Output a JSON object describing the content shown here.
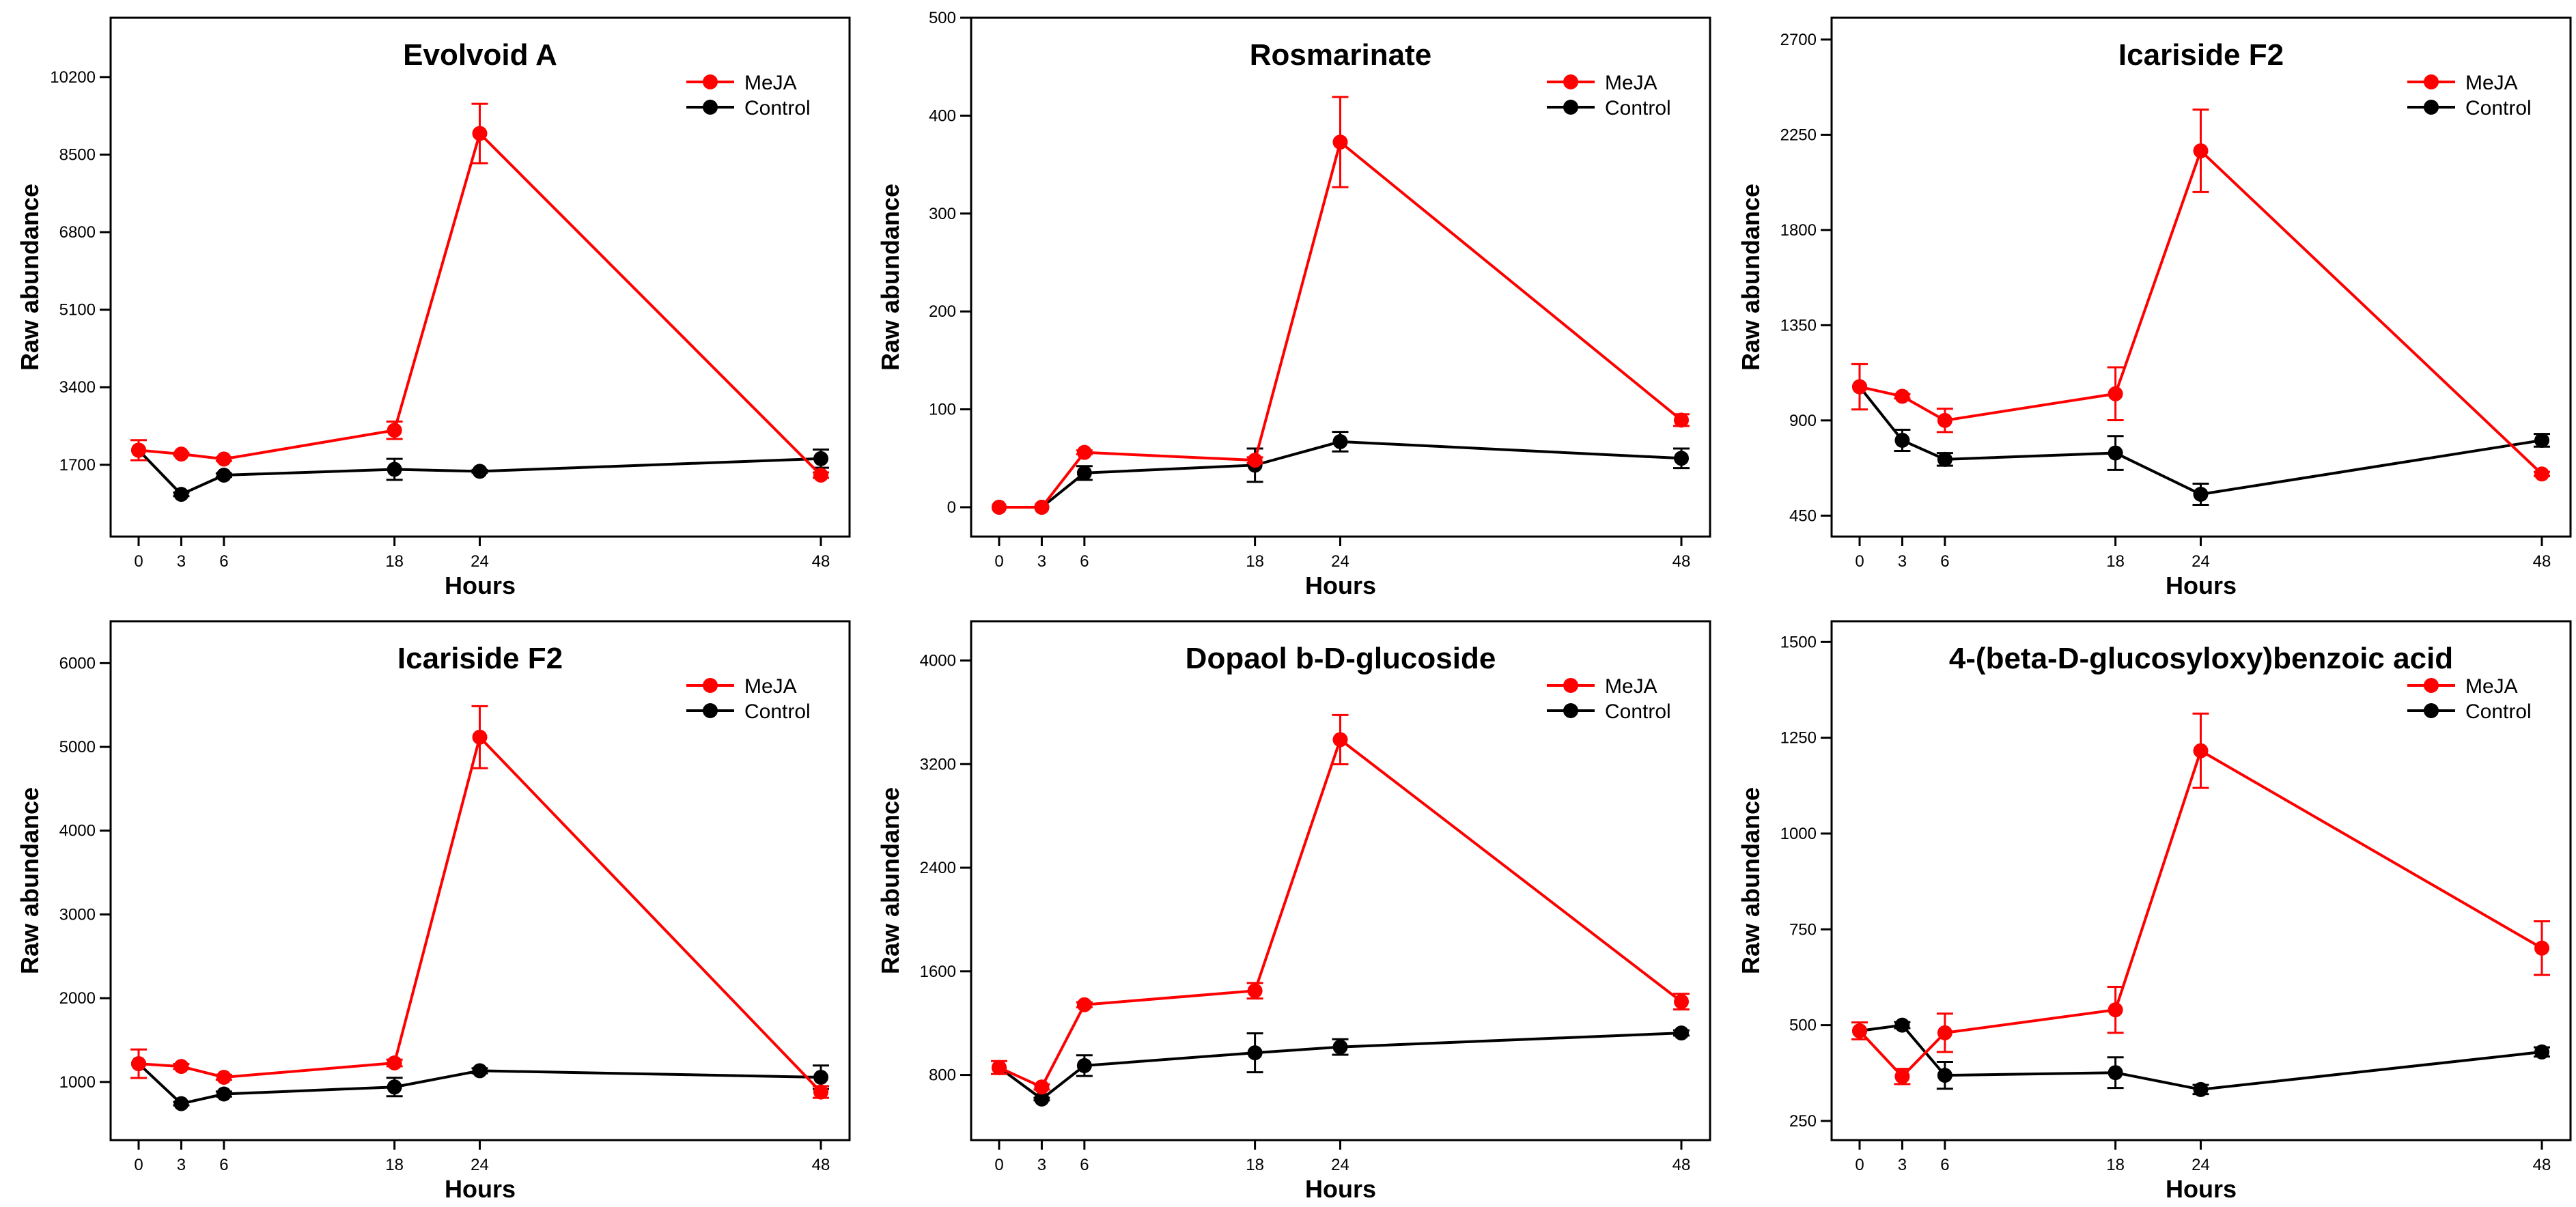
{
  "colors": {
    "MeJA": "#ff0000",
    "Control": "#000000"
  },
  "chart_data": [
    {
      "type": "line",
      "title": "Evolvoid A",
      "xlabel": "Hours",
      "ylabel": "Raw abundance",
      "x": [
        0,
        3,
        6,
        18,
        24,
        48
      ],
      "x_ticks": [
        "0",
        "3",
        "6",
        "18",
        "24",
        "48"
      ],
      "y_ticks": [
        1700,
        3400,
        5100,
        6800,
        8500,
        10200
      ],
      "ylim": [
        126,
        11500
      ],
      "legend": {
        "position": "top-right",
        "entries": [
          "MeJA",
          "Control"
        ]
      },
      "series": [
        {
          "name": "MeJA",
          "values": [
            2020,
            1935,
            1826,
            2457,
            8963,
            1473
          ],
          "errors": [
            220,
            30,
            40,
            190,
            650,
            60
          ]
        },
        {
          "name": "Control",
          "values": [
            2020,
            1052,
            1473,
            1600,
            1557,
            1835
          ],
          "errors": [
            0,
            40,
            40,
            230,
            30,
            200
          ]
        }
      ]
    },
    {
      "type": "line",
      "title": "Rosmarinate",
      "xlabel": "Hours",
      "ylabel": "Raw abundance",
      "x": [
        0,
        3,
        6,
        18,
        24,
        48
      ],
      "x_ticks": [
        "0",
        "3",
        "6",
        "18",
        "24",
        "48"
      ],
      "y_ticks": [
        0,
        100,
        200,
        300,
        400,
        500
      ],
      "ylim": [
        -30,
        500
      ],
      "legend": {
        "position": "top-right",
        "entries": [
          "MeJA",
          "Control"
        ]
      },
      "series": [
        {
          "name": "MeJA",
          "values": [
            0,
            0,
            56,
            48,
            373,
            89
          ],
          "errors": [
            0,
            0,
            2,
            3,
            46,
            6
          ]
        },
        {
          "name": "Control",
          "values": [
            0,
            0,
            35,
            43,
            67,
            50
          ],
          "errors": [
            0,
            0,
            7,
            17,
            10,
            10
          ]
        }
      ]
    },
    {
      "type": "line",
      "title": "Icariside F2",
      "xlabel": "Hours",
      "ylabel": "Raw abundance",
      "x": [
        0,
        3,
        6,
        18,
        24,
        48
      ],
      "x_ticks": [
        "0",
        "3",
        "6",
        "18",
        "24",
        "48"
      ],
      "y_ticks": [
        450,
        900,
        1350,
        1800,
        2250,
        2700
      ],
      "ylim": [
        351,
        2803
      ],
      "legend": {
        "position": "top-right",
        "entries": [
          "MeJA",
          "Control"
        ]
      },
      "series": [
        {
          "name": "MeJA",
          "values": [
            1059,
            1014,
            900,
            1026,
            2174,
            647
          ],
          "errors": [
            107,
            10,
            55,
            125,
            195,
            10
          ]
        },
        {
          "name": "Control",
          "values": [
            1059,
            806,
            716,
            746,
            551,
            806
          ],
          "errors": [
            0,
            50,
            30,
            80,
            50,
            30
          ]
        }
      ]
    },
    {
      "type": "line",
      "title": "Icariside F2",
      "xlabel": "Hours",
      "ylabel": "Raw abundance",
      "x": [
        0,
        3,
        6,
        18,
        24,
        48
      ],
      "x_ticks": [
        "0",
        "3",
        "6",
        "18",
        "24",
        "48"
      ],
      "y_ticks": [
        1000,
        2000,
        3000,
        4000,
        5000,
        6000
      ],
      "ylim": [
        306,
        6500
      ],
      "legend": {
        "position": "top-right",
        "entries": [
          "MeJA",
          "Control"
        ]
      },
      "series": [
        {
          "name": "MeJA",
          "values": [
            1218,
            1185,
            1056,
            1227,
            5116,
            880
          ],
          "errors": [
            170,
            30,
            30,
            40,
            370,
            70
          ]
        },
        {
          "name": "Control",
          "values": [
            1218,
            741,
            856,
            940,
            1134,
            1056
          ],
          "errors": [
            0,
            20,
            30,
            110,
            30,
            140
          ]
        }
      ]
    },
    {
      "type": "line",
      "title": "Dopaol b-D-glucoside",
      "xlabel": "Hours",
      "ylabel": "Raw abundance",
      "x": [
        0,
        3,
        6,
        18,
        24,
        48
      ],
      "x_ticks": [
        "0",
        "3",
        "6",
        "18",
        "24",
        "48"
      ],
      "y_ticks": [
        800,
        1600,
        2400,
        3200,
        4000
      ],
      "ylim": [
        297,
        4303
      ],
      "legend": {
        "position": "top-right",
        "entries": [
          "MeJA",
          "Control"
        ]
      },
      "series": [
        {
          "name": "MeJA",
          "values": [
            857,
            707,
            1342,
            1450,
            3389,
            1366
          ],
          "errors": [
            50,
            20,
            20,
            60,
            190,
            60
          ]
        },
        {
          "name": "Control",
          "values": [
            857,
            614,
            872,
            971,
            1016,
            1124
          ],
          "errors": [
            0,
            10,
            80,
            150,
            60,
            20
          ]
        }
      ]
    },
    {
      "type": "line",
      "title": "4-(beta-D-glucosyloxy)benzoic acid",
      "xlabel": "Hours",
      "ylabel": "Raw abundance",
      "x": [
        0,
        3,
        6,
        18,
        24,
        48
      ],
      "x_ticks": [
        "0",
        "3",
        "6",
        "18",
        "24",
        "48"
      ],
      "y_ticks": [
        250,
        500,
        750,
        1000,
        1250,
        1500
      ],
      "ylim": [
        200,
        1554
      ],
      "legend": {
        "position": "top-right",
        "entries": [
          "MeJA",
          "Control"
        ]
      },
      "series": [
        {
          "name": "MeJA",
          "values": [
            485,
            366,
            480,
            540,
            1216,
            701
          ],
          "errors": [
            22,
            20,
            50,
            60,
            97,
            70
          ]
        },
        {
          "name": "Control",
          "values": [
            485,
            500,
            369,
            376,
            332,
            430
          ],
          "errors": [
            0,
            8,
            35,
            40,
            12,
            12
          ]
        }
      ]
    }
  ]
}
